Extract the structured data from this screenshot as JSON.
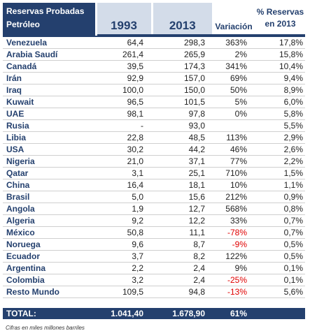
{
  "header": {
    "title_line1": "Reservas Probadas",
    "title_line2": "Petróleo",
    "year1": "1993",
    "year2": "2013",
    "variacion": "Variación",
    "pct_line1": "% Reservas",
    "pct_line2": "en 2013"
  },
  "rows": [
    {
      "name": "Venezuela",
      "y1993": "64,4",
      "y2013": "298,3",
      "var": "363%",
      "pct": "17,8%",
      "neg": false
    },
    {
      "name": "Arabia Saudí",
      "y1993": "261,4",
      "y2013": "265,9",
      "var": "2%",
      "pct": "15,8%",
      "neg": false
    },
    {
      "name": "Canadá",
      "y1993": "39,5",
      "y2013": "174,3",
      "var": "341%",
      "pct": "10,4%",
      "neg": false
    },
    {
      "name": "Irán",
      "y1993": "92,9",
      "y2013": "157,0",
      "var": "69%",
      "pct": "9,4%",
      "neg": false
    },
    {
      "name": "Iraq",
      "y1993": "100,0",
      "y2013": "150,0",
      "var": "50%",
      "pct": "8,9%",
      "neg": false
    },
    {
      "name": "Kuwait",
      "y1993": "96,5",
      "y2013": "101,5",
      "var": "5%",
      "pct": "6,0%",
      "neg": false
    },
    {
      "name": "UAE",
      "y1993": "98,1",
      "y2013": "97,8",
      "var": "0%",
      "pct": "5,8%",
      "neg": false
    },
    {
      "name": "Rusia",
      "y1993": "-",
      "y2013": "93,0",
      "var": "",
      "pct": "5,5%",
      "neg": false
    },
    {
      "name": "Libia",
      "y1993": "22,8",
      "y2013": "48,5",
      "var": "113%",
      "pct": "2,9%",
      "neg": false
    },
    {
      "name": "USA",
      "y1993": "30,2",
      "y2013": "44,2",
      "var": "46%",
      "pct": "2,6%",
      "neg": false
    },
    {
      "name": "Nigeria",
      "y1993": "21,0",
      "y2013": "37,1",
      "var": "77%",
      "pct": "2,2%",
      "neg": false
    },
    {
      "name": "Qatar",
      "y1993": "3,1",
      "y2013": "25,1",
      "var": "710%",
      "pct": "1,5%",
      "neg": false
    },
    {
      "name": "China",
      "y1993": "16,4",
      "y2013": "18,1",
      "var": "10%",
      "pct": "1,1%",
      "neg": false
    },
    {
      "name": "Brasil",
      "y1993": "5,0",
      "y2013": "15,6",
      "var": "212%",
      "pct": "0,9%",
      "neg": false
    },
    {
      "name": "Angola",
      "y1993": "1,9",
      "y2013": "12,7",
      "var": "568%",
      "pct": "0,8%",
      "neg": false
    },
    {
      "name": "Algeria",
      "y1993": "9,2",
      "y2013": "12,2",
      "var": "33%",
      "pct": "0,7%",
      "neg": false
    },
    {
      "name": "México",
      "y1993": "50,8",
      "y2013": "11,1",
      "var": "-78%",
      "pct": "0,7%",
      "neg": true
    },
    {
      "name": "Noruega",
      "y1993": "9,6",
      "y2013": "8,7",
      "var": "-9%",
      "pct": "0,5%",
      "neg": true
    },
    {
      "name": "Ecuador",
      "y1993": "3,7",
      "y2013": "8,2",
      "var": "122%",
      "pct": "0,5%",
      "neg": false
    },
    {
      "name": "Argentina",
      "y1993": "2,2",
      "y2013": "2,4",
      "var": "9%",
      "pct": "0,1%",
      "neg": false
    },
    {
      "name": "Colombia",
      "y1993": "3,2",
      "y2013": "2,4",
      "var": "-25%",
      "pct": "0,1%",
      "neg": true
    },
    {
      "name": "Resto Mundo",
      "y1993": "109,5",
      "y2013": "94,8",
      "var": "-13%",
      "pct": "5,6%",
      "neg": true
    }
  ],
  "total": {
    "name": "TOTAL:",
    "y1993": "1.041,40",
    "y2013": "1.678,90",
    "var": "61%",
    "pct": ""
  },
  "footnote": "Cifras en miles millones barriles"
}
